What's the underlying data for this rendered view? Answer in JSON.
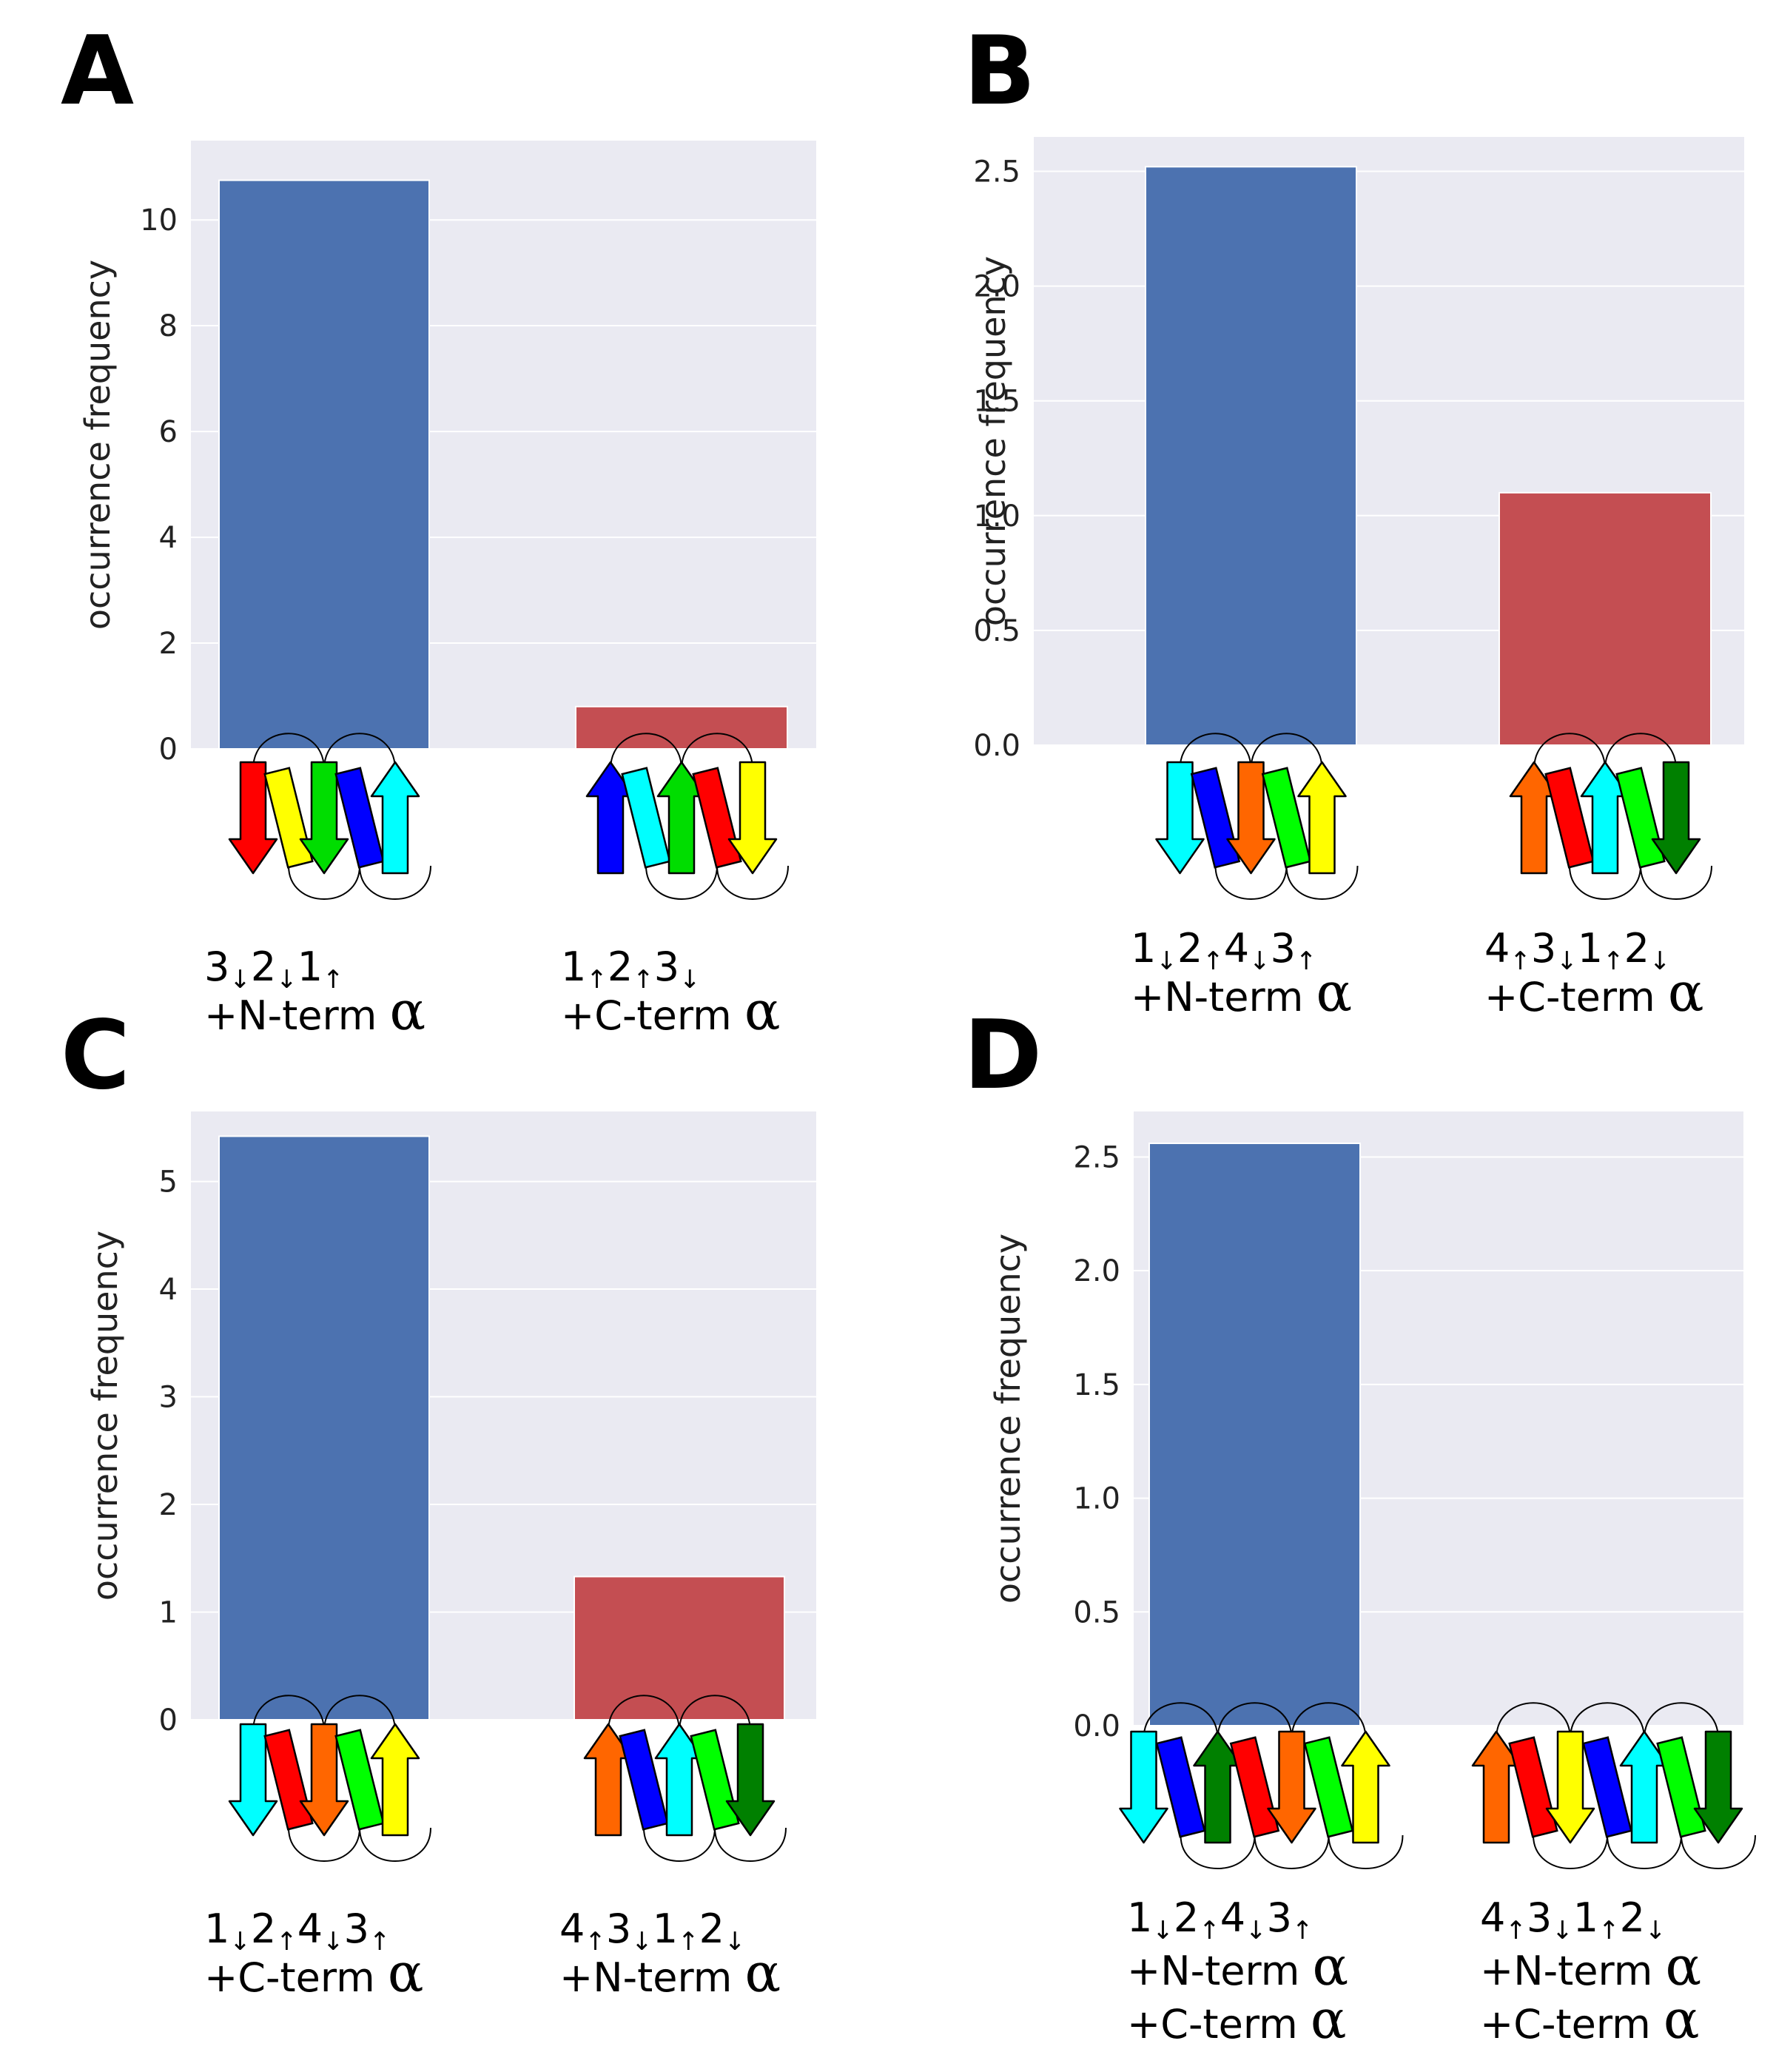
{
  "colors": {
    "plot_bg": "#eaeaf2",
    "grid": "#ffffff",
    "bar_blue": "#4c72b0",
    "bar_red": "#c44e52"
  },
  "chart_data": [
    {
      "panel": "A",
      "type": "bar",
      "ylabel": "occurrence frequency",
      "ylim": [
        0,
        11.5
      ],
      "yticks": [
        0,
        2,
        4,
        6,
        8,
        10
      ],
      "tick_decimals": 0,
      "bars": [
        {
          "value": 10.75,
          "color": "blue",
          "label_lines": [
            {
              "parts": [
                {
                  "t": "3"
                },
                {
                  "t": "↓",
                  "sub": true
                },
                {
                  "t": "2"
                },
                {
                  "t": "↓",
                  "sub": true
                },
                {
                  "t": "1"
                },
                {
                  "t": "↑",
                  "sub": true
                }
              ]
            },
            {
              "parts": [
                {
                  "t": "+N-term "
                },
                {
                  "t": "α",
                  "big": true
                }
              ]
            }
          ],
          "topology": {
            "strands": [
              {
                "color": "#ff0000",
                "dir": "down"
              },
              {
                "color": "#ffff00",
                "dir": "helix"
              },
              {
                "color": "#00dd00",
                "dir": "down"
              },
              {
                "color": "#0000ff",
                "dir": "helix"
              },
              {
                "color": "#00ffff",
                "dir": "up"
              }
            ]
          }
        },
        {
          "value": 0.8,
          "color": "red",
          "label_lines": [
            {
              "parts": [
                {
                  "t": "1"
                },
                {
                  "t": "↑",
                  "sub": true
                },
                {
                  "t": "2"
                },
                {
                  "t": "↑",
                  "sub": true
                },
                {
                  "t": "3"
                },
                {
                  "t": "↓",
                  "sub": true
                }
              ]
            },
            {
              "parts": [
                {
                  "t": "+C-term "
                },
                {
                  "t": "α",
                  "big": true
                }
              ]
            }
          ],
          "topology": {
            "strands": [
              {
                "color": "#0000ff",
                "dir": "up"
              },
              {
                "color": "#00ffff",
                "dir": "helix"
              },
              {
                "color": "#00dd00",
                "dir": "up"
              },
              {
                "color": "#ff0000",
                "dir": "helix"
              },
              {
                "color": "#ffff00",
                "dir": "down"
              }
            ]
          }
        }
      ]
    },
    {
      "panel": "B",
      "type": "bar",
      "ylabel": "occurrence frequency",
      "ylim": [
        0,
        2.65
      ],
      "yticks": [
        0.0,
        0.5,
        1.0,
        1.5,
        2.0,
        2.5
      ],
      "tick_decimals": 1,
      "bars": [
        {
          "value": 2.52,
          "color": "blue",
          "label_lines": [
            {
              "parts": [
                {
                  "t": "1"
                },
                {
                  "t": "↓",
                  "sub": true
                },
                {
                  "t": "2"
                },
                {
                  "t": "↑",
                  "sub": true
                },
                {
                  "t": "4"
                },
                {
                  "t": "↓",
                  "sub": true
                },
                {
                  "t": "3"
                },
                {
                  "t": "↑",
                  "sub": true
                }
              ]
            },
            {
              "parts": [
                {
                  "t": "+N-term "
                },
                {
                  "t": "α",
                  "big": true
                }
              ]
            }
          ],
          "topology": {
            "strands": [
              {
                "color": "#00ffff",
                "dir": "down"
              },
              {
                "color": "#0000ff",
                "dir": "helix"
              },
              {
                "color": "#ff6600",
                "dir": "down"
              },
              {
                "color": "#00ff00",
                "dir": "helix"
              },
              {
                "color": "#ffff00",
                "dir": "up"
              }
            ]
          }
        },
        {
          "value": 1.1,
          "color": "red",
          "label_lines": [
            {
              "parts": [
                {
                  "t": "4"
                },
                {
                  "t": "↑",
                  "sub": true
                },
                {
                  "t": "3"
                },
                {
                  "t": "↓",
                  "sub": true
                },
                {
                  "t": "1"
                },
                {
                  "t": "↑",
                  "sub": true
                },
                {
                  "t": "2"
                },
                {
                  "t": "↓",
                  "sub": true
                }
              ]
            },
            {
              "parts": [
                {
                  "t": "+C-term "
                },
                {
                  "t": "α",
                  "big": true
                }
              ]
            }
          ],
          "topology": {
            "strands": [
              {
                "color": "#ff6600",
                "dir": "up"
              },
              {
                "color": "#ff0000",
                "dir": "helix"
              },
              {
                "color": "#00ffff",
                "dir": "up"
              },
              {
                "color": "#00ff00",
                "dir": "helix"
              },
              {
                "color": "#008000",
                "dir": "down"
              }
            ]
          }
        }
      ]
    },
    {
      "panel": "C",
      "type": "bar",
      "ylabel": "occurrence frequency",
      "ylim": [
        0,
        5.65
      ],
      "yticks": [
        0,
        1,
        2,
        3,
        4,
        5
      ],
      "tick_decimals": 0,
      "bars": [
        {
          "value": 5.42,
          "color": "blue",
          "label_lines": [
            {
              "parts": [
                {
                  "t": "1"
                },
                {
                  "t": "↓",
                  "sub": true
                },
                {
                  "t": "2"
                },
                {
                  "t": "↑",
                  "sub": true
                },
                {
                  "t": "4"
                },
                {
                  "t": "↓",
                  "sub": true
                },
                {
                  "t": "3"
                },
                {
                  "t": "↑",
                  "sub": true
                }
              ]
            },
            {
              "parts": [
                {
                  "t": "+C-term "
                },
                {
                  "t": "α",
                  "big": true
                }
              ]
            }
          ],
          "topology": {
            "strands": [
              {
                "color": "#00ffff",
                "dir": "down"
              },
              {
                "color": "#ff0000",
                "dir": "helix"
              },
              {
                "color": "#ff6600",
                "dir": "down"
              },
              {
                "color": "#00ff00",
                "dir": "helix"
              },
              {
                "color": "#ffff00",
                "dir": "up"
              }
            ]
          }
        },
        {
          "value": 1.33,
          "color": "red",
          "label_lines": [
            {
              "parts": [
                {
                  "t": "4"
                },
                {
                  "t": "↑",
                  "sub": true
                },
                {
                  "t": "3"
                },
                {
                  "t": "↓",
                  "sub": true
                },
                {
                  "t": "1"
                },
                {
                  "t": "↑",
                  "sub": true
                },
                {
                  "t": "2"
                },
                {
                  "t": "↓",
                  "sub": true
                }
              ]
            },
            {
              "parts": [
                {
                  "t": "+N-term "
                },
                {
                  "t": "α",
                  "big": true
                }
              ]
            }
          ],
          "topology": {
            "strands": [
              {
                "color": "#ff6600",
                "dir": "up"
              },
              {
                "color": "#0000ff",
                "dir": "helix"
              },
              {
                "color": "#00ffff",
                "dir": "up"
              },
              {
                "color": "#00ff00",
                "dir": "helix"
              },
              {
                "color": "#008000",
                "dir": "down"
              }
            ]
          }
        }
      ]
    },
    {
      "panel": "D",
      "type": "bar",
      "ylabel": "occurrence frequency",
      "ylim": [
        0,
        2.7
      ],
      "yticks": [
        0.0,
        0.5,
        1.0,
        1.5,
        2.0,
        2.5
      ],
      "tick_decimals": 1,
      "bars": [
        {
          "value": 2.56,
          "color": "blue",
          "label_lines": [
            {
              "parts": [
                {
                  "t": "1"
                },
                {
                  "t": "↓",
                  "sub": true
                },
                {
                  "t": "2"
                },
                {
                  "t": "↑",
                  "sub": true
                },
                {
                  "t": "4"
                },
                {
                  "t": "↓",
                  "sub": true
                },
                {
                  "t": "3"
                },
                {
                  "t": "↑",
                  "sub": true
                }
              ]
            },
            {
              "parts": [
                {
                  "t": "+N-term "
                },
                {
                  "t": "α",
                  "big": true
                }
              ]
            },
            {
              "parts": [
                {
                  "t": "+C-term "
                },
                {
                  "t": "α",
                  "big": true
                }
              ]
            }
          ],
          "topology": {
            "strands": [
              {
                "color": "#00ffff",
                "dir": "down"
              },
              {
                "color": "#0000ff",
                "dir": "helix"
              },
              {
                "color": "#008000",
                "dir": "up"
              },
              {
                "color": "#ff0000",
                "dir": "helix"
              },
              {
                "color": "#ff6600",
                "dir": "down"
              },
              {
                "color": "#00ff00",
                "dir": "helix"
              },
              {
                "color": "#ffff00",
                "dir": "up"
              }
            ]
          }
        },
        {
          "value": 0,
          "color": "red",
          "label_lines": [
            {
              "parts": [
                {
                  "t": "4"
                },
                {
                  "t": "↑",
                  "sub": true
                },
                {
                  "t": "3"
                },
                {
                  "t": "↓",
                  "sub": true
                },
                {
                  "t": "1"
                },
                {
                  "t": "↑",
                  "sub": true
                },
                {
                  "t": "2"
                },
                {
                  "t": "↓",
                  "sub": true
                }
              ]
            },
            {
              "parts": [
                {
                  "t": "+N-term "
                },
                {
                  "t": "α",
                  "big": true
                }
              ]
            },
            {
              "parts": [
                {
                  "t": "+C-term "
                },
                {
                  "t": "α",
                  "big": true
                }
              ]
            }
          ],
          "topology": {
            "strands": [
              {
                "color": "#ff6600",
                "dir": "up"
              },
              {
                "color": "#ff0000",
                "dir": "helix"
              },
              {
                "color": "#ffff00",
                "dir": "down"
              },
              {
                "color": "#0000ff",
                "dir": "helix"
              },
              {
                "color": "#00ffff",
                "dir": "up"
              },
              {
                "color": "#00ff00",
                "dir": "helix"
              },
              {
                "color": "#008000",
                "dir": "down"
              }
            ]
          }
        }
      ]
    }
  ]
}
